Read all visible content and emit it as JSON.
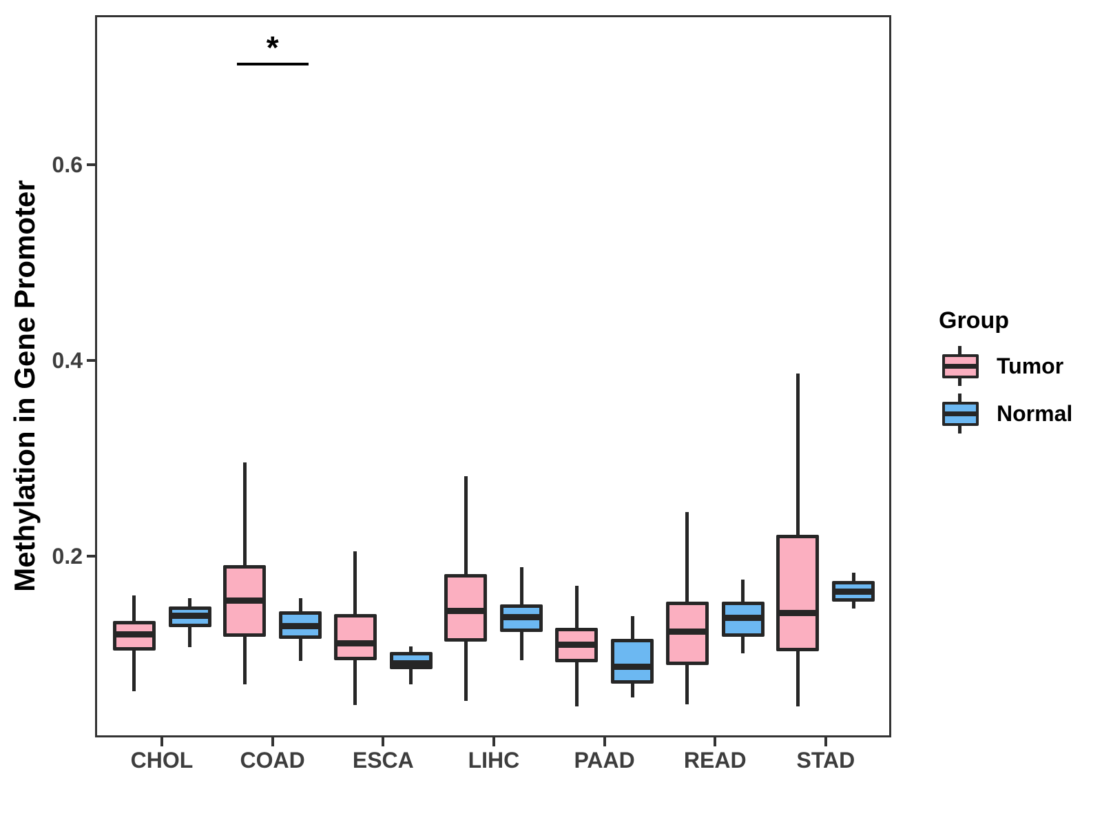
{
  "figure": {
    "background": "#FFFFFF",
    "panel_border_color": "#333333",
    "axis_text_color": "#3D3D3D",
    "box_border_color": "#262626"
  },
  "y_axis": {
    "title": "Methylation in Gene Promoter",
    "tick_labels": [
      "0.2",
      "0.4",
      "0.6"
    ]
  },
  "x_axis": {
    "title": "",
    "categories": [
      "CHOL",
      "COAD",
      "ESCA",
      "LIHC",
      "PAAD",
      "READ",
      "STAD"
    ]
  },
  "legend": {
    "title": "Group",
    "entries": [
      {
        "label": "Tumor",
        "color": "#FBAFC0"
      },
      {
        "label": "Normal",
        "color": "#6CB8F2"
      }
    ]
  },
  "annotation": {
    "label": "*"
  },
  "chart_data": {
    "type": "grouped_boxplot",
    "title": "",
    "xlabel": "",
    "ylabel": "Methylation in Gene Promoter",
    "legend_title": "Group",
    "legend_position": "right",
    "grid": false,
    "categories": [
      "CHOL",
      "COAD",
      "ESCA",
      "LIHC",
      "PAAD",
      "READ",
      "STAD"
    ],
    "y_ticks": [
      0.2,
      0.4,
      0.6
    ],
    "ylim": [
      0.015,
      0.753
    ],
    "series": [
      {
        "name": "Tumor",
        "fill": "#FBAFC0",
        "boxes": [
          {
            "category": "CHOL",
            "whisker_low": 0.062,
            "q1": 0.104,
            "median": 0.12,
            "q3": 0.134,
            "whisker_high": 0.16
          },
          {
            "category": "COAD",
            "whisker_low": 0.069,
            "q1": 0.118,
            "median": 0.155,
            "q3": 0.191,
            "whisker_high": 0.296
          },
          {
            "category": "ESCA",
            "whisker_low": 0.048,
            "q1": 0.094,
            "median": 0.111,
            "q3": 0.141,
            "whisker_high": 0.205
          },
          {
            "category": "LIHC",
            "whisker_low": 0.052,
            "q1": 0.113,
            "median": 0.144,
            "q3": 0.182,
            "whisker_high": 0.282
          },
          {
            "category": "PAAD",
            "whisker_low": 0.047,
            "q1": 0.092,
            "median": 0.11,
            "q3": 0.127,
            "whisker_high": 0.17
          },
          {
            "category": "READ",
            "whisker_low": 0.049,
            "q1": 0.089,
            "median": 0.123,
            "q3": 0.154,
            "whisker_high": 0.245
          },
          {
            "category": "STAD",
            "whisker_low": 0.047,
            "q1": 0.103,
            "median": 0.142,
            "q3": 0.222,
            "whisker_high": 0.387
          }
        ]
      },
      {
        "name": "Normal",
        "fill": "#6CB8F2",
        "boxes": [
          {
            "category": "CHOL",
            "whisker_low": 0.107,
            "q1": 0.128,
            "median": 0.139,
            "q3": 0.149,
            "whisker_high": 0.157
          },
          {
            "category": "COAD",
            "whisker_low": 0.093,
            "q1": 0.116,
            "median": 0.129,
            "q3": 0.144,
            "whisker_high": 0.157
          },
          {
            "category": "ESCA",
            "whisker_low": 0.069,
            "q1": 0.085,
            "median": 0.091,
            "q3": 0.102,
            "whisker_high": 0.108
          },
          {
            "category": "LIHC",
            "whisker_low": 0.094,
            "q1": 0.123,
            "median": 0.138,
            "q3": 0.151,
            "whisker_high": 0.189
          },
          {
            "category": "PAAD",
            "whisker_low": 0.056,
            "q1": 0.07,
            "median": 0.087,
            "q3": 0.116,
            "whisker_high": 0.139
          },
          {
            "category": "READ",
            "whisker_low": 0.101,
            "q1": 0.118,
            "median": 0.137,
            "q3": 0.154,
            "whisker_high": 0.176
          },
          {
            "category": "STAD",
            "whisker_low": 0.147,
            "q1": 0.154,
            "median": 0.164,
            "q3": 0.175,
            "whisker_high": 0.183
          }
        ]
      }
    ],
    "significance_marks": [
      {
        "category": "COAD",
        "label": "*",
        "bar_y": 0.703
      }
    ]
  }
}
